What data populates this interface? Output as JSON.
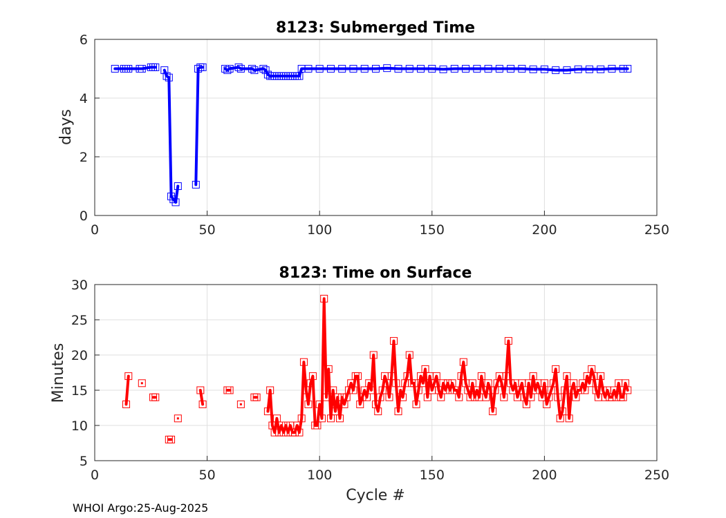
{
  "footer": "WHOI Argo:25-Aug-2025",
  "chart_data": [
    {
      "type": "line",
      "title": "8123: Submerged Time",
      "xlabel": "",
      "ylabel": "days",
      "xlim": [
        0,
        250
      ],
      "ylim": [
        0,
        6
      ],
      "xticks": [
        0,
        50,
        100,
        150,
        200,
        250
      ],
      "yticks": [
        0,
        2,
        4,
        6
      ],
      "color": "#0000ff",
      "series": [
        {
          "name": "submerged",
          "x": [
            9,
            13,
            14,
            15,
            20,
            21,
            25,
            26,
            27
          ],
          "y": [
            5.0,
            5.0,
            5.0,
            5.0,
            5.0,
            5.0,
            5.05,
            5.05,
            5.05
          ]
        },
        {
          "name": "submerged",
          "x": [
            31,
            32,
            33,
            34,
            35,
            36,
            37
          ],
          "y": [
            4.95,
            4.75,
            4.7,
            0.65,
            0.55,
            0.45,
            1.0
          ]
        },
        {
          "name": "submerged",
          "x": [
            45,
            46,
            47,
            48
          ],
          "y": [
            1.05,
            5.0,
            5.05,
            5.05
          ]
        },
        {
          "name": "submerged",
          "x": [
            58,
            59,
            60,
            64,
            65,
            70,
            71,
            75,
            76,
            77,
            78,
            79,
            80,
            81,
            82,
            83,
            84,
            85,
            86,
            87,
            88,
            89,
            90,
            91,
            92,
            95,
            100,
            105,
            110,
            115,
            120,
            125,
            130,
            135,
            140,
            145,
            150,
            155,
            160,
            165,
            170,
            175,
            180,
            185,
            190,
            195,
            200,
            205,
            210,
            215,
            220,
            225,
            230,
            235,
            237
          ],
          "y": [
            5.0,
            4.95,
            5.0,
            5.05,
            5.0,
            5.0,
            4.95,
            5.0,
            4.95,
            4.8,
            4.75,
            4.75,
            4.75,
            4.75,
            4.75,
            4.75,
            4.75,
            4.75,
            4.75,
            4.75,
            4.75,
            4.75,
            4.75,
            4.75,
            5.0,
            5.0,
            5.0,
            5.0,
            5.0,
            5.0,
            5.0,
            5.0,
            5.02,
            5.0,
            5.0,
            5.0,
            5.0,
            4.98,
            5.0,
            5.0,
            5.0,
            5.0,
            5.0,
            5.0,
            5.0,
            4.98,
            4.98,
            4.95,
            4.95,
            4.98,
            4.98,
            4.98,
            5.0,
            5.0,
            5.0
          ]
        }
      ]
    },
    {
      "type": "line",
      "title": "8123: Time on Surface",
      "xlabel": "Cycle #",
      "ylabel": "Minutes",
      "xlim": [
        0,
        250
      ],
      "ylim": [
        5,
        30
      ],
      "xticks": [
        0,
        50,
        100,
        150,
        200,
        250
      ],
      "yticks": [
        5,
        10,
        15,
        20,
        25,
        30
      ],
      "color": "#ff0000",
      "series": [
        {
          "name": "surface",
          "x": [
            14,
            15
          ],
          "y": [
            13,
            17
          ]
        },
        {
          "name": "surface",
          "x": [
            21
          ],
          "y": [
            16
          ]
        },
        {
          "name": "surface",
          "x": [
            26,
            27
          ],
          "y": [
            14,
            14
          ]
        },
        {
          "name": "surface",
          "x": [
            33,
            34
          ],
          "y": [
            8,
            8
          ]
        },
        {
          "name": "surface",
          "x": [
            37
          ],
          "y": [
            11
          ]
        },
        {
          "name": "surface",
          "x": [
            47,
            48
          ],
          "y": [
            15,
            13
          ]
        },
        {
          "name": "surface",
          "x": [
            59,
            60
          ],
          "y": [
            15,
            15
          ]
        },
        {
          "name": "surface",
          "x": [
            65
          ],
          "y": [
            13
          ]
        },
        {
          "name": "surface",
          "x": [
            71,
            72
          ],
          "y": [
            14,
            14
          ]
        },
        {
          "name": "surface",
          "x": [
            77,
            78,
            79,
            80,
            81,
            82,
            83,
            84,
            85,
            86,
            87,
            88,
            89,
            90,
            91,
            92,
            93,
            94,
            95,
            96,
            97,
            98,
            99,
            100,
            101,
            102,
            103,
            104,
            105,
            106,
            107,
            108,
            109,
            110,
            111,
            112,
            113,
            114,
            115,
            116,
            117,
            118,
            119,
            120,
            121,
            122,
            123,
            124,
            125,
            126,
            127,
            128,
            129,
            130,
            131,
            132,
            133,
            134,
            135,
            136,
            137,
            138,
            139,
            140,
            141,
            142,
            143,
            144,
            145,
            146,
            147,
            148,
            149,
            150,
            151,
            152,
            153,
            154,
            155,
            156,
            157,
            158,
            159,
            160,
            161,
            162,
            163,
            164,
            165,
            166,
            167,
            168,
            169,
            170,
            171,
            172,
            173,
            174,
            175,
            176,
            177,
            178,
            179,
            180,
            181,
            182,
            183,
            184,
            185,
            186,
            187,
            188,
            189,
            190,
            191,
            192,
            193,
            194,
            195,
            196,
            197,
            198,
            199,
            200,
            201,
            202,
            203,
            204,
            205,
            206,
            207,
            208,
            209,
            210,
            211,
            212,
            213,
            214,
            215,
            216,
            217,
            218,
            219,
            220,
            221,
            222,
            223,
            224,
            225,
            226,
            227,
            228,
            229,
            230,
            231,
            232,
            233,
            234,
            235,
            236,
            237
          ],
          "y": [
            12,
            15,
            10,
            9,
            11,
            9,
            10,
            9,
            10,
            9,
            10,
            9,
            9,
            10,
            9,
            11,
            19,
            15,
            13,
            16,
            17,
            10,
            10,
            13,
            11,
            28,
            14,
            18,
            11,
            15,
            12,
            14,
            11,
            14,
            13,
            14,
            15,
            16,
            15,
            17,
            17,
            13,
            14,
            15,
            14,
            16,
            15,
            20,
            13,
            12,
            14,
            15,
            17,
            16,
            14,
            17,
            22,
            16,
            12,
            15,
            14,
            16,
            17,
            20,
            16,
            16,
            13,
            15,
            17,
            16,
            18,
            14,
            17,
            15,
            16,
            17,
            15,
            14,
            16,
            15,
            16,
            15,
            16,
            15,
            15,
            14,
            17,
            19,
            16,
            15,
            14,
            16,
            14,
            15,
            14,
            17,
            15,
            14,
            16,
            15,
            12,
            15,
            16,
            17,
            16,
            14,
            17,
            22,
            16,
            15,
            16,
            14,
            15,
            16,
            14,
            13,
            16,
            14,
            17,
            15,
            16,
            15,
            14,
            16,
            13,
            14,
            15,
            16,
            18,
            14,
            11,
            12,
            15,
            17,
            11,
            15,
            16,
            14,
            15,
            15,
            16,
            15,
            17,
            16,
            18,
            17,
            15,
            14,
            17,
            15,
            14,
            15,
            14,
            14,
            15,
            14,
            16,
            14,
            14,
            16,
            15
          ]
        }
      ]
    }
  ]
}
